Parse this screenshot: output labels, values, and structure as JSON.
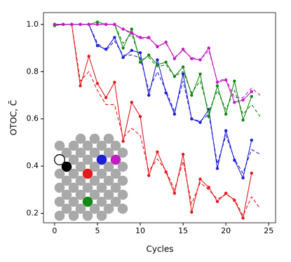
{
  "chart_data": {
    "type": "line",
    "xlabel": "Cycles",
    "ylabel": "OTOC, C̄",
    "xlim": [
      -1.3,
      25.8
    ],
    "ylim": [
      0.16,
      1.05
    ],
    "xticks": [
      0,
      5,
      10,
      15,
      20,
      25
    ],
    "yticks": [
      0.2,
      0.4,
      0.6,
      0.8,
      {
        "value": 1,
        "label": "1.0"
      }
    ],
    "series": [
      {
        "color": "#e31a1c",
        "style": "solid",
        "markers": true,
        "x": [
          0,
          1,
          2,
          3,
          4,
          5,
          6,
          7,
          8,
          9,
          10,
          11,
          12,
          13,
          14,
          15,
          16,
          17,
          18,
          19,
          20,
          21,
          22,
          23
        ],
        "values": [
          1.0,
          1.0,
          1.0,
          0.74,
          0.865,
          0.75,
          0.69,
          0.755,
          0.505,
          0.67,
          0.61,
          0.36,
          0.46,
          0.375,
          0.285,
          0.45,
          0.205,
          0.345,
          0.31,
          0.25,
          0.285,
          0.255,
          0.18,
          0.37
        ]
      },
      {
        "color": "#e31a1c",
        "style": "dashed",
        "markers": false,
        "x": [
          0,
          1,
          2,
          3,
          4,
          5,
          6,
          7,
          8,
          9,
          10,
          11,
          12,
          13,
          14,
          15,
          16,
          17,
          18,
          19,
          20,
          21,
          22,
          23,
          24
        ],
        "values": [
          1.0,
          1.0,
          1.0,
          0.76,
          0.8,
          0.72,
          0.66,
          0.66,
          0.52,
          0.56,
          0.53,
          0.38,
          0.43,
          0.38,
          0.3,
          0.42,
          0.24,
          0.33,
          0.3,
          0.26,
          0.28,
          0.26,
          0.19,
          0.27,
          0.22
        ]
      },
      {
        "color": "#1f1fd6",
        "style": "solid",
        "markers": true,
        "x": [
          0,
          1,
          2,
          3,
          4,
          5,
          6,
          7,
          8,
          9,
          10,
          11,
          12,
          13,
          14,
          15,
          16,
          17,
          18,
          19,
          20,
          21,
          22,
          23
        ],
        "values": [
          1.0,
          1.0,
          1.0,
          1.0,
          1.0,
          0.91,
          0.895,
          0.945,
          0.86,
          0.89,
          0.88,
          0.7,
          0.85,
          0.71,
          0.62,
          0.79,
          0.6,
          0.585,
          0.64,
          0.39,
          0.55,
          0.425,
          0.35,
          0.51
        ]
      },
      {
        "color": "#1f1fd6",
        "style": "dashed",
        "markers": false,
        "x": [
          0,
          1,
          2,
          3,
          4,
          5,
          6,
          7,
          8,
          9,
          10,
          11,
          12,
          13,
          14,
          15,
          16,
          17,
          18,
          19,
          20,
          21,
          22,
          23,
          24
        ],
        "values": [
          1.0,
          1.0,
          1.0,
          1.0,
          1.0,
          0.92,
          0.89,
          0.93,
          0.87,
          0.87,
          0.86,
          0.72,
          0.8,
          0.72,
          0.63,
          0.76,
          0.6,
          0.59,
          0.62,
          0.41,
          0.53,
          0.43,
          0.37,
          0.47,
          0.45
        ]
      },
      {
        "color": "#138a13",
        "style": "solid",
        "markers": true,
        "x": [
          0,
          1,
          2,
          3,
          4,
          5,
          6,
          7,
          8,
          9,
          10,
          11,
          12,
          13,
          14,
          15,
          16,
          17,
          18,
          19,
          20,
          21,
          22,
          23
        ],
        "values": [
          0.995,
          1.0,
          1.0,
          1.0,
          1.0,
          1.01,
          1.0,
          1.0,
          0.9,
          0.98,
          0.84,
          0.87,
          0.83,
          0.84,
          0.78,
          0.82,
          0.7,
          0.79,
          0.61,
          0.74,
          0.62,
          0.76,
          0.595,
          0.695
        ]
      },
      {
        "color": "#138a13",
        "style": "dashed",
        "markers": false,
        "x": [
          0,
          1,
          2,
          3,
          4,
          5,
          6,
          7,
          8,
          9,
          10,
          11,
          12,
          13,
          14,
          15,
          16,
          17,
          18,
          19,
          20,
          21,
          22,
          23,
          24
        ],
        "values": [
          1.0,
          1.0,
          1.0,
          1.0,
          1.0,
          1.0,
          1.0,
          1.0,
          0.92,
          0.96,
          0.85,
          0.86,
          0.82,
          0.83,
          0.78,
          0.8,
          0.71,
          0.76,
          0.63,
          0.72,
          0.64,
          0.72,
          0.62,
          0.66,
          0.61
        ]
      },
      {
        "color": "#c41bc4",
        "style": "solid",
        "markers": true,
        "x": [
          0,
          1,
          2,
          3,
          4,
          5,
          6,
          7,
          8,
          9,
          10,
          11,
          12,
          13,
          14,
          15,
          16,
          17,
          18,
          19,
          20,
          21,
          22,
          23
        ],
        "values": [
          1.0,
          1.0,
          1.0,
          1.0,
          1.0,
          1.0,
          1.0,
          1.0,
          0.98,
          0.965,
          0.945,
          0.945,
          0.905,
          0.925,
          0.855,
          0.895,
          0.855,
          0.85,
          0.9,
          0.755,
          0.765,
          0.67,
          0.68,
          0.715
        ]
      },
      {
        "color": "#c41bc4",
        "style": "dashed",
        "markers": false,
        "x": [
          0,
          1,
          2,
          3,
          4,
          5,
          6,
          7,
          8,
          9,
          10,
          11,
          12,
          13,
          14,
          15,
          16,
          17,
          18,
          19,
          20,
          21,
          22,
          23,
          24
        ],
        "values": [
          1.0,
          1.0,
          1.0,
          1.0,
          1.0,
          1.0,
          1.0,
          1.0,
          0.98,
          0.96,
          0.94,
          0.94,
          0.91,
          0.92,
          0.86,
          0.89,
          0.86,
          0.85,
          0.89,
          0.76,
          0.77,
          0.69,
          0.69,
          0.73,
          0.7
        ]
      }
    ]
  }
}
